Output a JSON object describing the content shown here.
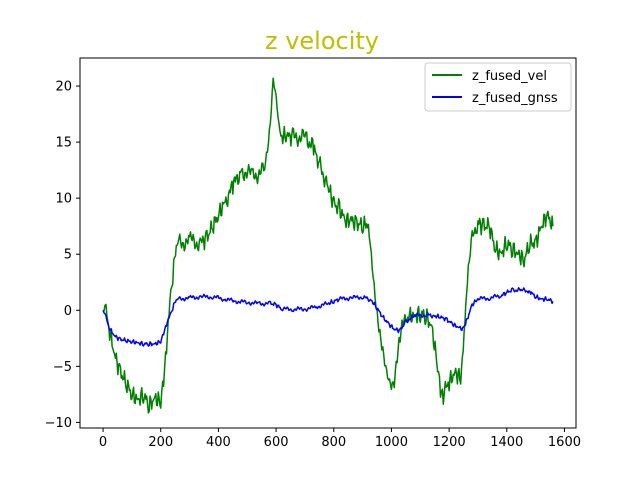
{
  "chart_data": {
    "type": "line",
    "title": "z velocity",
    "title_color": "#bfbf00",
    "xlabel": "",
    "ylabel": "",
    "xlim": [
      -80,
      1640
    ],
    "ylim": [
      -10.5,
      22.5
    ],
    "xticks": [
      0,
      200,
      400,
      600,
      800,
      1000,
      1200,
      1400,
      1600
    ],
    "yticks": [
      -10,
      -5,
      0,
      5,
      10,
      15,
      20
    ],
    "grid": false,
    "legend_position": "upper right",
    "series": [
      {
        "name": "z_fused_vel",
        "color": "#008000",
        "x": [
          0,
          10,
          20,
          40,
          60,
          80,
          100,
          120,
          140,
          160,
          180,
          200,
          210,
          220,
          235,
          245,
          260,
          300,
          340,
          360,
          380,
          400,
          420,
          450,
          480,
          520,
          560,
          570,
          580,
          590,
          600,
          610,
          620,
          640,
          660,
          700,
          730,
          750,
          780,
          800,
          820,
          840,
          860,
          880,
          900,
          920,
          930,
          940,
          950,
          960,
          970,
          980,
          990,
          1000,
          1010,
          1020,
          1030,
          1040,
          1050,
          1060,
          1080,
          1100,
          1120,
          1140,
          1160,
          1170,
          1180,
          1190,
          1200,
          1220,
          1240,
          1255,
          1260,
          1270,
          1280,
          1290,
          1300,
          1320,
          1340,
          1360,
          1380,
          1400,
          1420,
          1440,
          1460,
          1480,
          1500,
          1520,
          1540,
          1560
        ],
        "values": [
          0.0,
          0.5,
          -1.5,
          -4.0,
          -5.5,
          -6.5,
          -7.5,
          -8.0,
          -7.5,
          -8.5,
          -7.8,
          -8.2,
          -6.0,
          -3.0,
          1.5,
          4.0,
          6.0,
          6.2,
          6.0,
          6.5,
          7.5,
          8.5,
          9.5,
          11.0,
          12.5,
          12.0,
          12.5,
          14.0,
          16.5,
          20.5,
          19.0,
          16.5,
          15.5,
          15.5,
          15.5,
          15.5,
          14.5,
          13.0,
          11.0,
          9.5,
          9.0,
          8.0,
          8.0,
          7.8,
          7.5,
          7.8,
          5.0,
          2.0,
          -0.5,
          -2.5,
          -4.0,
          -5.5,
          -6.5,
          -7.0,
          -6.5,
          -4.0,
          -2.0,
          -0.5,
          -0.3,
          -0.5,
          -0.5,
          -0.3,
          -0.5,
          -1.5,
          -5.0,
          -7.0,
          -7.5,
          -6.0,
          -6.5,
          -5.5,
          -6.0,
          -1.0,
          2.0,
          5.0,
          7.5,
          7.5,
          7.8,
          7.5,
          7.5,
          5.5,
          5.0,
          6.0,
          5.5,
          5.0,
          4.5,
          6.0,
          6.0,
          7.5,
          8.5,
          7.5
        ]
      },
      {
        "name": "z_fused_gnss",
        "color": "#0000ff",
        "x": [
          0,
          10,
          20,
          40,
          60,
          80,
          100,
          120,
          140,
          160,
          180,
          200,
          210,
          220,
          235,
          245,
          260,
          300,
          340,
          380,
          420,
          460,
          500,
          540,
          580,
          600,
          620,
          660,
          700,
          740,
          780,
          800,
          820,
          860,
          900,
          930,
          950,
          970,
          990,
          1010,
          1030,
          1050,
          1080,
          1120,
          1150,
          1170,
          1190,
          1210,
          1230,
          1250,
          1260,
          1280,
          1300,
          1340,
          1380,
          1400,
          1420,
          1450,
          1480,
          1500,
          1520,
          1540,
          1560
        ],
        "values": [
          0.0,
          -0.5,
          -1.5,
          -2.3,
          -2.6,
          -2.7,
          -2.8,
          -2.9,
          -3.0,
          -3.0,
          -3.0,
          -2.8,
          -2.0,
          -1.2,
          -0.3,
          0.5,
          1.0,
          1.1,
          1.2,
          1.2,
          1.0,
          0.8,
          0.7,
          0.6,
          0.6,
          0.5,
          0.1,
          0.1,
          0.1,
          0.3,
          0.6,
          0.8,
          1.0,
          1.1,
          1.2,
          0.9,
          0.2,
          -0.6,
          -1.2,
          -1.7,
          -1.8,
          -1.0,
          -0.5,
          -0.4,
          -0.5,
          -0.6,
          -0.8,
          -1.2,
          -1.5,
          -1.7,
          -1.0,
          0.5,
          1.0,
          1.1,
          1.3,
          1.6,
          1.8,
          1.8,
          1.7,
          1.2,
          1.0,
          1.0,
          0.8
        ]
      }
    ]
  }
}
